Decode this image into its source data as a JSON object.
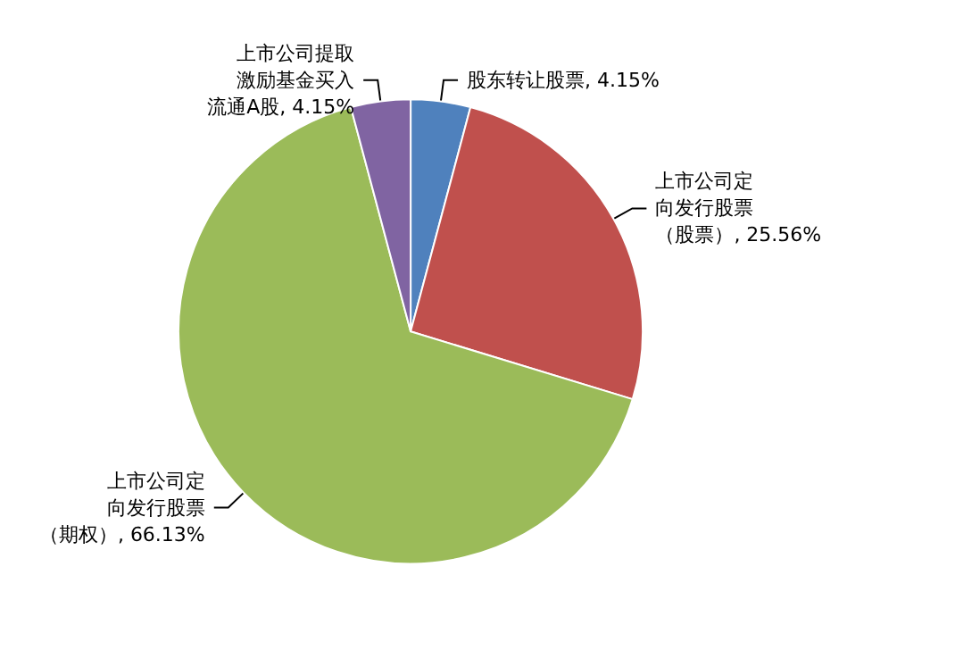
{
  "chart_data": {
    "type": "pie",
    "categories": [
      "股东转让股票",
      "上市公司定向发行股票（股票）",
      "上市公司定向发行股票（期权）",
      "上市公司提取激励基金买入流通A股"
    ],
    "values": [
      4.15,
      25.56,
      66.13,
      4.15
    ],
    "colors": [
      "#4f81bd",
      "#c0504d",
      "#9bbb59",
      "#8064a2"
    ],
    "value_labels": [
      "4.15%",
      "25.56%",
      "66.13%",
      "4.15%"
    ],
    "legend": false
  }
}
